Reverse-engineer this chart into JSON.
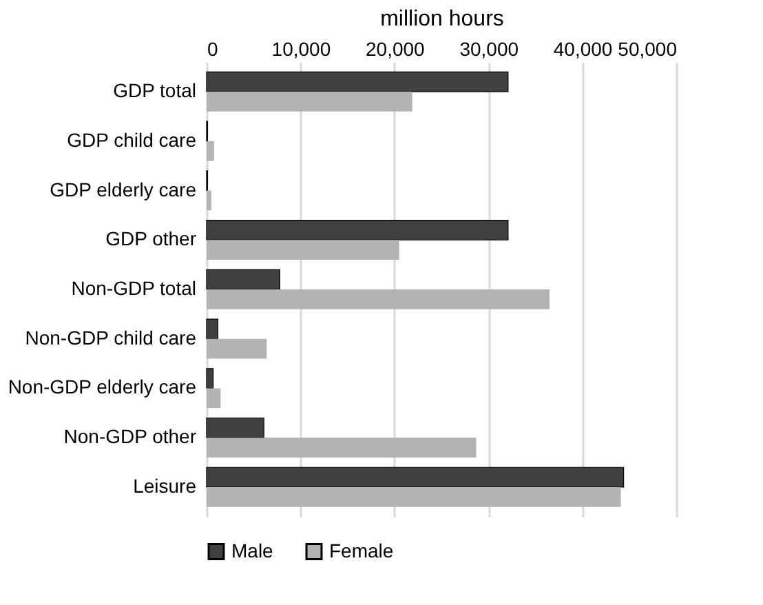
{
  "chart_data": {
    "type": "bar",
    "orientation": "horizontal",
    "xlabel": "million hours",
    "categories": [
      "GDP total",
      "GDP child care",
      "GDP elderly care",
      "GDP other",
      "Non-GDP total",
      "Non-GDP child care",
      "Non-GDP elderly care",
      "Non-GDP other",
      "Leisure"
    ],
    "series": [
      {
        "name": "Male",
        "color": "#404040",
        "values": [
          32100,
          100,
          100,
          32100,
          7800,
          1200,
          700,
          6100,
          44400
        ]
      },
      {
        "name": "Female",
        "color": "#b3b3b3",
        "values": [
          21900,
          800,
          500,
          20500,
          36500,
          6400,
          1500,
          28700,
          44100
        ]
      }
    ],
    "xlim": [
      0,
      50000
    ],
    "xticks": [
      {
        "value": 0,
        "label": "0"
      },
      {
        "value": 10000,
        "label": "10,000"
      },
      {
        "value": 20000,
        "label": "20,000"
      },
      {
        "value": 30000,
        "label": "30,000"
      },
      {
        "value": 40000,
        "label": "40,000"
      },
      {
        "value": 50000,
        "label": "50,000"
      }
    ],
    "grid": "x",
    "legend": "bottom"
  }
}
